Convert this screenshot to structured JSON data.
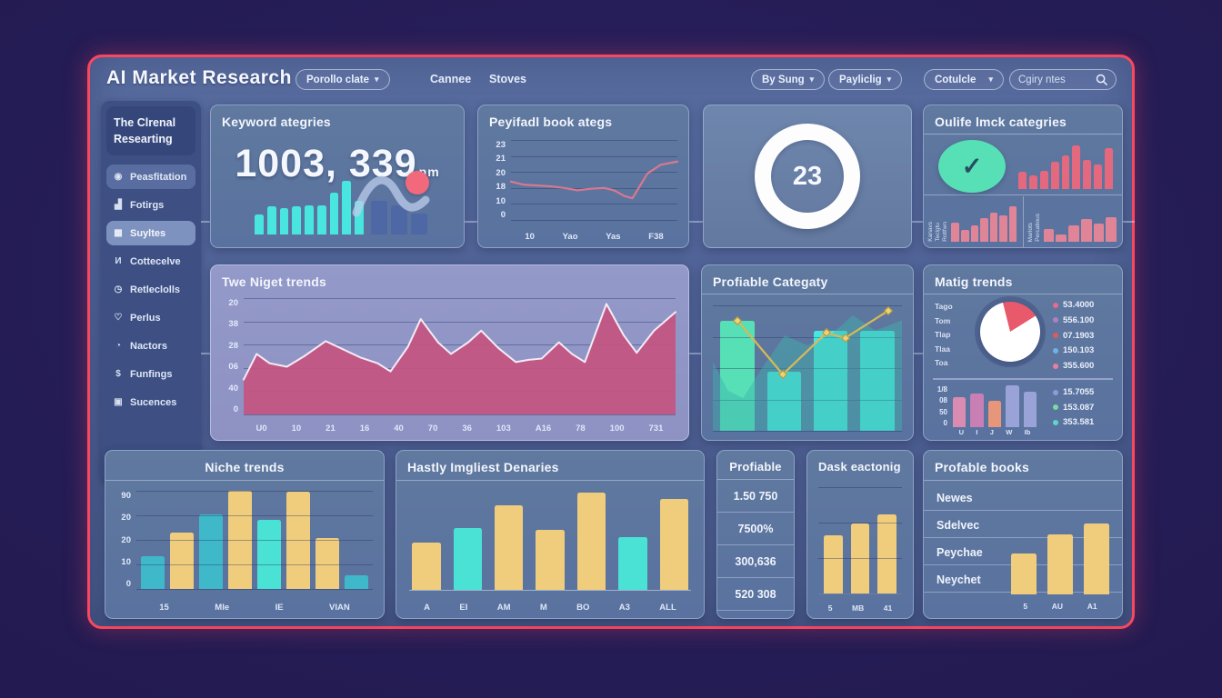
{
  "colors": {
    "accent": "#f8475f",
    "cyan": "#49e6e0",
    "teal": "#3fb9c9",
    "brightcyan": "#4ae2d4",
    "yellow": "#f0cd7d",
    "mint": "#57dfb6",
    "pink": "#e4697f",
    "rose": "#c65480",
    "blue": "#4d68a4",
    "line_rose": "#d9788f",
    "line_yellow": "#d9b955"
  },
  "icons": {
    "chevron_down": "▾",
    "check": "✓"
  },
  "header": {
    "title": "AI Market Research",
    "portfolio_dropdown": "Porollo clate",
    "nav": [
      "Cannee",
      "Stoves"
    ],
    "filter_dropdowns": [
      "By Sung",
      "Payliclig",
      "Cotulcle"
    ],
    "search_placeholder": "Cgiry ntes"
  },
  "sidebar": {
    "header_line1": "The Clrenal",
    "header_line2": "Researting",
    "items": [
      {
        "icon": "user-circle-icon",
        "glyph": "◉",
        "label": "Peasfitation",
        "variant": "pill-bg"
      },
      {
        "icon": "bar-chart-icon",
        "glyph": "▟",
        "label": "Fotirgs",
        "variant": ""
      },
      {
        "icon": "grid-icon",
        "glyph": "▦",
        "label": "Suyltes",
        "variant": "pill-light"
      },
      {
        "icon": "collection-icon",
        "glyph": "И",
        "label": "Cottecelve",
        "variant": ""
      },
      {
        "icon": "clock-icon",
        "glyph": "◷",
        "label": "Retleclolls",
        "variant": ""
      },
      {
        "icon": "heart-icon",
        "glyph": "♡",
        "label": "Perlus",
        "variant": ""
      },
      {
        "icon": "timer-icon",
        "glyph": "◔",
        "label": "Nactors",
        "variant": ""
      },
      {
        "icon": "dollar-icon",
        "glyph": "$",
        "label": "Funfings",
        "variant": ""
      },
      {
        "icon": "briefcase-icon",
        "glyph": "▣",
        "label": "Sucences",
        "variant": ""
      }
    ]
  },
  "cards": {
    "keyword": {
      "title": "Keyword ategries",
      "value": "1003, 339",
      "value_suffix": "pm",
      "chart": {
        "type": "bar",
        "cyan_bars": [
          30,
          43,
          40,
          43,
          45,
          45,
          64,
          82,
          52
        ],
        "blue_bars": [
          52,
          44,
          32
        ]
      }
    },
    "payload": {
      "title": "Peyifadl book ategs",
      "chart": {
        "type": "line",
        "y_ticks": [
          "23",
          "21",
          "20",
          "18",
          "10",
          "0"
        ],
        "x_ticks": [
          "10",
          "Yao",
          "Yas",
          "F38"
        ],
        "points": [
          [
            0,
            52
          ],
          [
            8,
            56
          ],
          [
            16,
            57
          ],
          [
            24,
            58
          ],
          [
            32,
            60
          ],
          [
            40,
            63
          ],
          [
            48,
            61
          ],
          [
            56,
            60
          ],
          [
            62,
            63
          ],
          [
            68,
            70
          ],
          [
            73,
            73
          ],
          [
            82,
            42
          ],
          [
            90,
            31
          ],
          [
            100,
            27
          ]
        ]
      }
    },
    "ring": {
      "value": "23"
    },
    "quality": {
      "title": "Oulife lmck categries",
      "top_bars": [
        38,
        30,
        40,
        58,
        72,
        95,
        62,
        52,
        88
      ],
      "mini_left": {
        "labels": [
          "Kanavs",
          "Teclgtu",
          "Rotlfwn"
        ],
        "bars": [
          48,
          30,
          42,
          60,
          72,
          66,
          88
        ]
      },
      "mini_right": {
        "labels": [
          "Marlots",
          "Percatious"
        ],
        "bars": [
          32,
          18,
          42,
          56,
          46,
          62
        ]
      }
    },
    "niget": {
      "title": "Twe Niget trends",
      "chart": {
        "type": "area",
        "y_ticks": [
          "20",
          "38",
          "28",
          "06",
          "40",
          "0"
        ],
        "x_ticks": [
          "U0",
          "10",
          "21",
          "16",
          "40",
          "70",
          "36",
          "103",
          "A16",
          "78",
          "100",
          "731"
        ],
        "area_points": [
          [
            0,
            30
          ],
          [
            3,
            52
          ],
          [
            6,
            44
          ],
          [
            10,
            41
          ],
          [
            14,
            50
          ],
          [
            19,
            63
          ],
          [
            23,
            56
          ],
          [
            27,
            49
          ],
          [
            31,
            44
          ],
          [
            34,
            37
          ],
          [
            38,
            58
          ],
          [
            41,
            82
          ],
          [
            45,
            62
          ],
          [
            48,
            52
          ],
          [
            52,
            62
          ],
          [
            55,
            72
          ],
          [
            59,
            57
          ],
          [
            63,
            45
          ],
          [
            66,
            47
          ],
          [
            69,
            48
          ],
          [
            73,
            62
          ],
          [
            76,
            52
          ],
          [
            79,
            45
          ],
          [
            84,
            95
          ],
          [
            88,
            68
          ],
          [
            91,
            53
          ],
          [
            95,
            72
          ],
          [
            100,
            88
          ]
        ]
      }
    },
    "profcat": {
      "title": "Profiable Categaty",
      "chart": {
        "type": "bar+line",
        "bars": [
          {
            "c": "mint",
            "v": 88
          },
          {
            "c": "cyan",
            "v": 47
          },
          {
            "c": "cyan",
            "v": 80
          },
          {
            "c": "cyan",
            "v": 80
          }
        ],
        "line_points": [
          [
            13,
            12
          ],
          [
            37,
            55
          ],
          [
            60,
            22
          ],
          [
            70,
            26
          ],
          [
            93,
            4
          ]
        ],
        "silhouette": [
          [
            0,
            55
          ],
          [
            8,
            32
          ],
          [
            16,
            26
          ],
          [
            26,
            50
          ],
          [
            38,
            76
          ],
          [
            50,
            68
          ],
          [
            62,
            76
          ],
          [
            74,
            92
          ],
          [
            86,
            80
          ],
          [
            100,
            88
          ]
        ]
      }
    },
    "matig": {
      "title": "Matig trends",
      "top_labels": [
        "Tago",
        "Tom",
        "Tlap",
        "Tlaa",
        "Toa"
      ],
      "pie": {
        "type": "pie",
        "slice_percent": 20,
        "slice_color": "#e8596b",
        "base_color": "#ffffff"
      },
      "top_legend": [
        {
          "color": "#e86a8c",
          "value": "53.4000"
        },
        {
          "color": "#b07fc0",
          "value": "556.100"
        },
        {
          "color": "#e05a5a",
          "value": "07.1903"
        },
        {
          "color": "#6fb3e0",
          "value": "150.103"
        },
        {
          "color": "#e87fa0",
          "value": "355.600"
        }
      ],
      "mini": {
        "type": "bar",
        "y_ticks": [
          "1/8",
          "08",
          "50",
          "0"
        ],
        "bars": [
          {
            "color": "#d98bb1",
            "v": 72
          },
          {
            "color": "#c77fb4",
            "v": 80
          },
          {
            "color": "#e8967a",
            "v": 62
          },
          {
            "color": "#9aa3d8",
            "v": 100
          },
          {
            "color": "#9aa3d8",
            "v": 85
          }
        ],
        "x_ticks": [
          "U",
          "I",
          "J",
          "W",
          "Ib"
        ]
      },
      "bottom_legend": [
        {
          "color": "#8f9ad8",
          "value": "15.7055"
        },
        {
          "color": "#7ed8a0",
          "value": "153.087"
        },
        {
          "color": "#5bd8c8",
          "value": "353.581"
        }
      ]
    },
    "niche": {
      "title": "Niche trends",
      "chart": {
        "type": "bar",
        "y_ticks": [
          "90",
          "20",
          "20",
          "10",
          "0"
        ],
        "bars": [
          {
            "c": "teal",
            "v": 33
          },
          {
            "c": "yellow",
            "v": 57
          },
          {
            "c": "teal",
            "v": 76
          },
          {
            "c": "yellow",
            "v": 100
          },
          {
            "c": "brightcyan",
            "v": 70
          },
          {
            "c": "yellow",
            "v": 99
          },
          {
            "c": "yellow",
            "v": 52
          },
          {
            "c": "teal",
            "v": 14
          }
        ],
        "x_ticks": [
          "15",
          "MIe",
          "IE",
          "VIAN"
        ]
      }
    },
    "hastly": {
      "title": "Hastly Imgliest Denaries",
      "chart": {
        "type": "bar",
        "bars": [
          {
            "c": "yellow",
            "v": 48
          },
          {
            "c": "brightcyan",
            "v": 62
          },
          {
            "c": "yellow",
            "v": 85
          },
          {
            "c": "yellow",
            "v": 61
          },
          {
            "c": "yellow",
            "v": 98
          },
          {
            "c": "brightcyan",
            "v": 53
          },
          {
            "c": "yellow",
            "v": 92
          }
        ],
        "x_ticks": [
          "A",
          "EI",
          "AM",
          "M",
          "BO",
          "A3",
          "ALL"
        ]
      }
    },
    "profnums": {
      "title": "Profiable",
      "values": [
        "1.50 750",
        "7500%",
        "300,636",
        "520 308"
      ]
    },
    "dask": {
      "title": "Dask eactonig",
      "chart": {
        "type": "bar",
        "bars": [
          55,
          66,
          74
        ],
        "x_ticks": [
          "5",
          "MB",
          "41"
        ]
      }
    },
    "books": {
      "title": "Profable books",
      "rows": [
        "Newes",
        "Sdelvec",
        "Peychae",
        "Neychet"
      ],
      "chart": {
        "type": "bar",
        "bars": [
          42,
          62,
          74
        ],
        "x_ticks": [
          "5",
          "AU",
          "A1"
        ]
      }
    }
  }
}
